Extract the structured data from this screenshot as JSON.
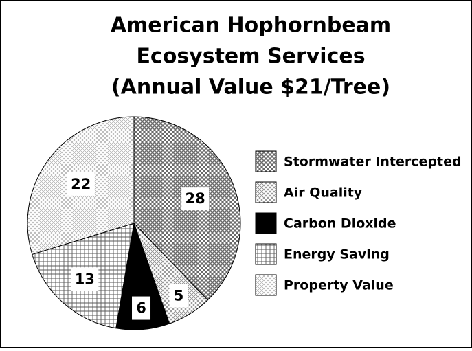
{
  "chart_data": {
    "type": "pie",
    "title": [
      "American Hophornbeam",
      "Ecosystem Services",
      "(Annual Value $21/Tree)"
    ],
    "categories": [
      "Stormwater Intercepted",
      "Air Quality",
      "Carbon Dioxide",
      "Energy Saving",
      "Property Value"
    ],
    "values": [
      28,
      5,
      6,
      13,
      22
    ],
    "colors": [
      "#6a6a6a",
      "#8a8a8a",
      "#000000",
      "#5a5a5a",
      "#9a9a9a"
    ],
    "legend": "right"
  }
}
